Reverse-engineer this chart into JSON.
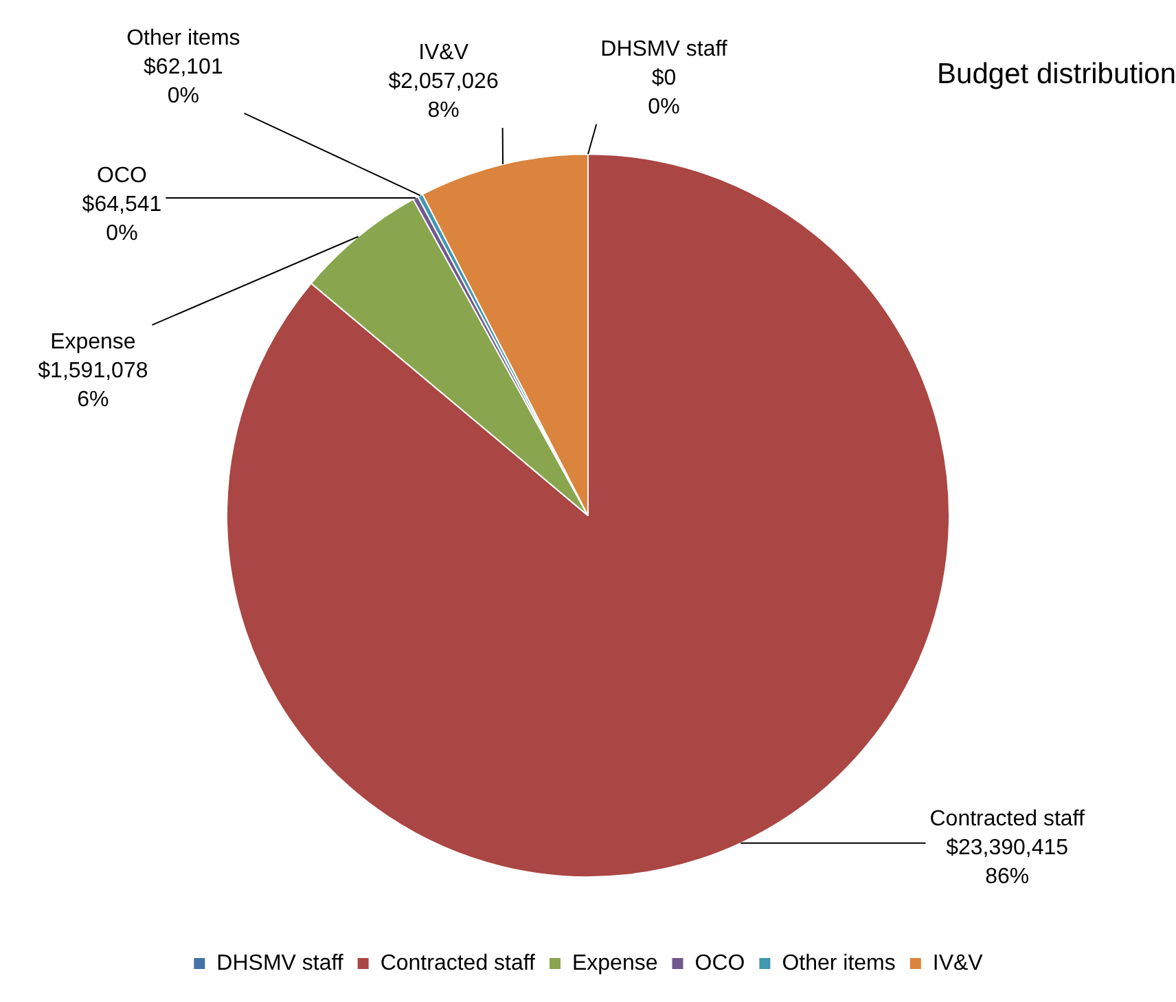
{
  "chart_data": {
    "type": "pie",
    "title": "Budget distribution",
    "categories": [
      "DHSMV staff",
      "Contracted staff",
      "Expense",
      "OCO",
      "Other items",
      "IV&V"
    ],
    "values": [
      0,
      23390415,
      1591078,
      64541,
      62101,
      2057026
    ],
    "colors": [
      "#4572a7",
      "#aa4643",
      "#89a54e",
      "#71588f",
      "#4198af",
      "#db843d"
    ],
    "value_labels": [
      "$0\n0%",
      "$23,390,415\n86%",
      "$1,591,078\n6%",
      "$64,541\n0%",
      "$62,101\n0%",
      "$2,057,026\n8%"
    ],
    "legend": "bottom"
  }
}
